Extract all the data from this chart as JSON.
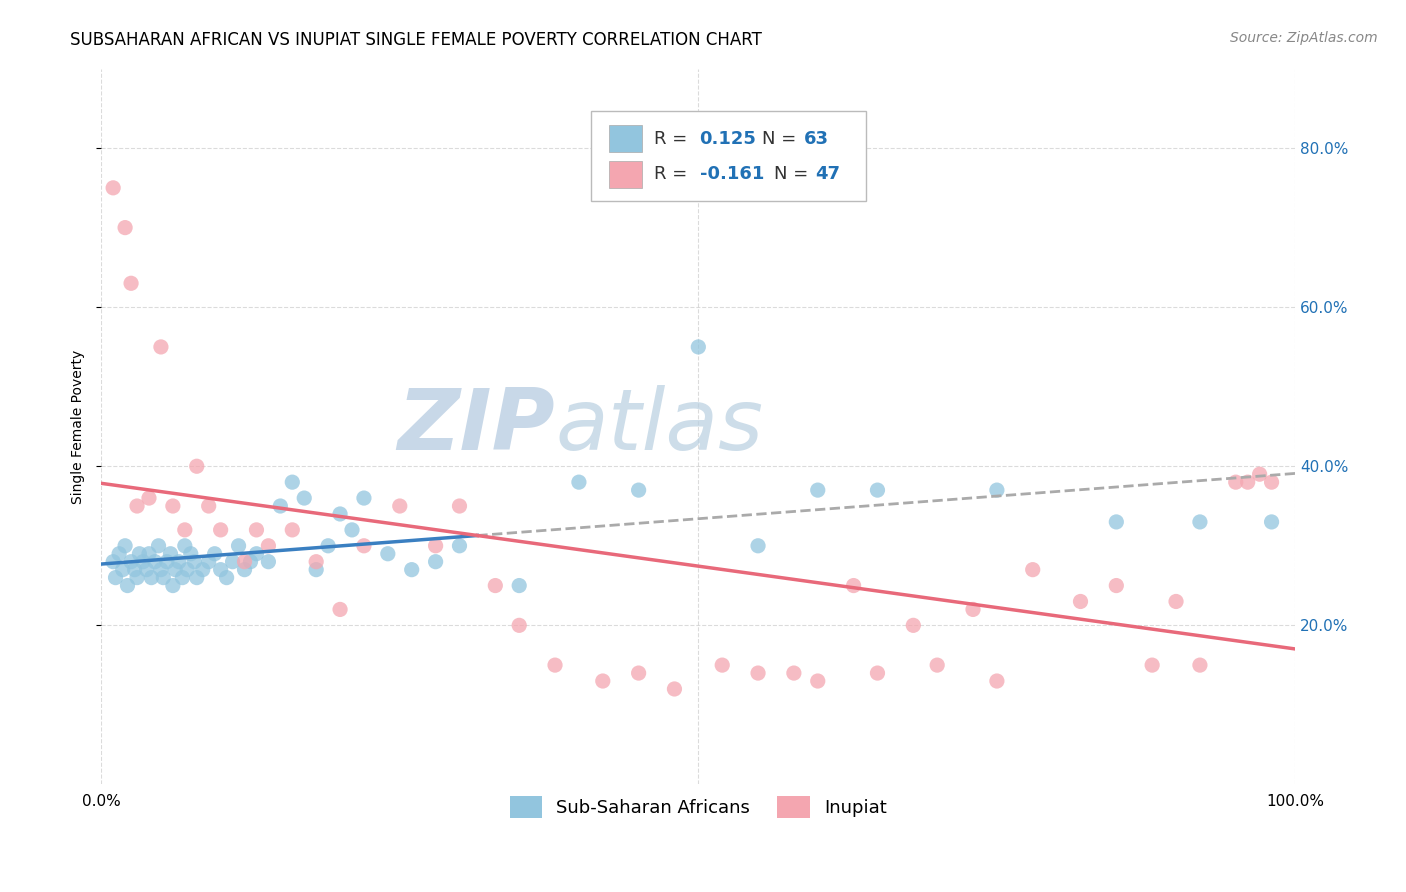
{
  "title": "SUBSAHARAN AFRICAN VS INUPIAT SINGLE FEMALE POVERTY CORRELATION CHART",
  "source": "Source: ZipAtlas.com",
  "ylabel": "Single Female Poverty",
  "legend_label1": "Sub-Saharan Africans",
  "legend_label2": "Inupiat",
  "r1": 0.125,
  "n1": 63,
  "r2": -0.161,
  "n2": 47,
  "blue_color": "#92c5de",
  "pink_color": "#f4a6b0",
  "blue_line_color": "#3a7fc1",
  "pink_line_color": "#e8697a",
  "watermark_zip_color": "#c8d8e8",
  "watermark_atlas_color": "#c8d8e8",
  "background_color": "#ffffff",
  "grid_color": "#cccccc",
  "blue_scatter_x": [
    1.0,
    1.2,
    1.5,
    1.8,
    2.0,
    2.2,
    2.5,
    2.8,
    3.0,
    3.2,
    3.5,
    3.8,
    4.0,
    4.2,
    4.5,
    4.8,
    5.0,
    5.2,
    5.5,
    5.8,
    6.0,
    6.2,
    6.5,
    6.8,
    7.0,
    7.2,
    7.5,
    7.8,
    8.0,
    8.5,
    9.0,
    9.5,
    10.0,
    10.5,
    11.0,
    11.5,
    12.0,
    12.5,
    13.0,
    14.0,
    15.0,
    16.0,
    17.0,
    18.0,
    19.0,
    20.0,
    21.0,
    22.0,
    24.0,
    26.0,
    28.0,
    30.0,
    35.0,
    40.0,
    45.0,
    50.0,
    55.0,
    60.0,
    65.0,
    75.0,
    85.0,
    92.0,
    98.0
  ],
  "blue_scatter_y": [
    28.0,
    26.0,
    29.0,
    27.0,
    30.0,
    25.0,
    28.0,
    27.0,
    26.0,
    29.0,
    28.0,
    27.0,
    29.0,
    26.0,
    28.0,
    30.0,
    27.0,
    26.0,
    28.0,
    29.0,
    25.0,
    27.0,
    28.0,
    26.0,
    30.0,
    27.0,
    29.0,
    28.0,
    26.0,
    27.0,
    28.0,
    29.0,
    27.0,
    26.0,
    28.0,
    30.0,
    27.0,
    28.0,
    29.0,
    28.0,
    35.0,
    38.0,
    36.0,
    27.0,
    30.0,
    34.0,
    32.0,
    36.0,
    29.0,
    27.0,
    28.0,
    30.0,
    25.0,
    38.0,
    37.0,
    55.0,
    30.0,
    37.0,
    37.0,
    37.0,
    33.0,
    33.0,
    33.0
  ],
  "pink_scatter_x": [
    1.0,
    2.0,
    2.5,
    3.0,
    4.0,
    5.0,
    6.0,
    7.0,
    8.0,
    9.0,
    10.0,
    12.0,
    13.0,
    14.0,
    16.0,
    18.0,
    20.0,
    22.0,
    25.0,
    28.0,
    30.0,
    33.0,
    35.0,
    38.0,
    42.0,
    45.0,
    48.0,
    52.0,
    55.0,
    58.0,
    60.0,
    63.0,
    65.0,
    68.0,
    70.0,
    73.0,
    75.0,
    78.0,
    82.0,
    85.0,
    88.0,
    90.0,
    92.0,
    95.0,
    96.0,
    97.0,
    98.0
  ],
  "pink_scatter_y": [
    75.0,
    70.0,
    63.0,
    35.0,
    36.0,
    55.0,
    35.0,
    32.0,
    40.0,
    35.0,
    32.0,
    28.0,
    32.0,
    30.0,
    32.0,
    28.0,
    22.0,
    30.0,
    35.0,
    30.0,
    35.0,
    25.0,
    20.0,
    15.0,
    13.0,
    14.0,
    12.0,
    15.0,
    14.0,
    14.0,
    13.0,
    25.0,
    14.0,
    20.0,
    15.0,
    22.0,
    13.0,
    27.0,
    23.0,
    25.0,
    15.0,
    23.0,
    15.0,
    38.0,
    38.0,
    39.0,
    38.0
  ],
  "ylim": [
    0,
    90
  ],
  "xlim": [
    0,
    100
  ],
  "yticks": [
    20,
    40,
    60,
    80
  ],
  "ytick_labels": [
    "20.0%",
    "40.0%",
    "60.0%",
    "80.0%"
  ],
  "title_fontsize": 12,
  "axis_label_fontsize": 10,
  "tick_fontsize": 11,
  "source_fontsize": 10
}
